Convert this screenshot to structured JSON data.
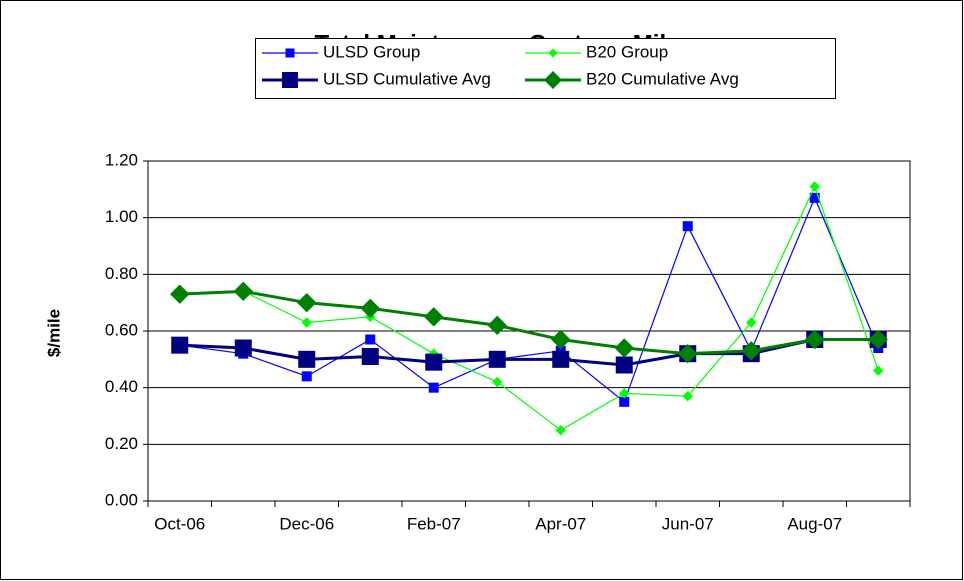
{
  "chart_data": {
    "type": "line",
    "title": "Total Maintenance Cost per Mile",
    "y_label": "$/mile",
    "categories": [
      "Oct-06",
      null,
      "Dec-06",
      null,
      "Feb-07",
      null,
      "Apr-07",
      null,
      "Jun-07",
      null,
      "Aug-07",
      null
    ],
    "series": [
      {
        "name": "ULSD Group",
        "color": "#0000ff",
        "marker": "square",
        "marker_size": 9,
        "line_width": 1.2,
        "values": [
          0.55,
          0.52,
          0.44,
          0.57,
          0.4,
          0.5,
          0.53,
          0.35,
          0.97,
          0.53,
          1.07,
          0.54
        ]
      },
      {
        "name": "B20 Group",
        "color": "#00ff00",
        "marker": "diamond",
        "marker_size": 9,
        "line_width": 1.2,
        "values": [
          0.73,
          0.74,
          0.63,
          0.65,
          0.52,
          0.42,
          0.25,
          0.38,
          0.37,
          0.63,
          1.11,
          0.46
        ]
      },
      {
        "name": "ULSD Cumulative Avg",
        "color": "#000080",
        "marker": "square",
        "marker_size": 16,
        "line_width": 3,
        "values": [
          0.55,
          0.54,
          0.5,
          0.51,
          0.49,
          0.5,
          0.5,
          0.48,
          0.52,
          0.52,
          0.57,
          0.57
        ]
      },
      {
        "name": "B20 Cumulative Avg",
        "color": "#008000",
        "marker": "diamond",
        "marker_size": 18,
        "line_width": 3,
        "values": [
          0.73,
          0.74,
          0.7,
          0.68,
          0.65,
          0.62,
          0.57,
          0.54,
          0.52,
          0.53,
          0.57,
          0.57
        ]
      }
    ],
    "ylim": [
      0,
      1.2
    ],
    "yticks": [
      {
        "value": 0,
        "label": "0.00"
      },
      {
        "value": 0.2,
        "label": "0.20"
      },
      {
        "value": 0.4,
        "label": "0.40"
      },
      {
        "value": 0.6,
        "label": "0.60"
      },
      {
        "value": 0.8,
        "label": "0.80"
      },
      {
        "value": 1,
        "label": "1.00"
      },
      {
        "value": 1.2,
        "label": "1.20"
      }
    ],
    "grid": true,
    "legend": "top"
  }
}
